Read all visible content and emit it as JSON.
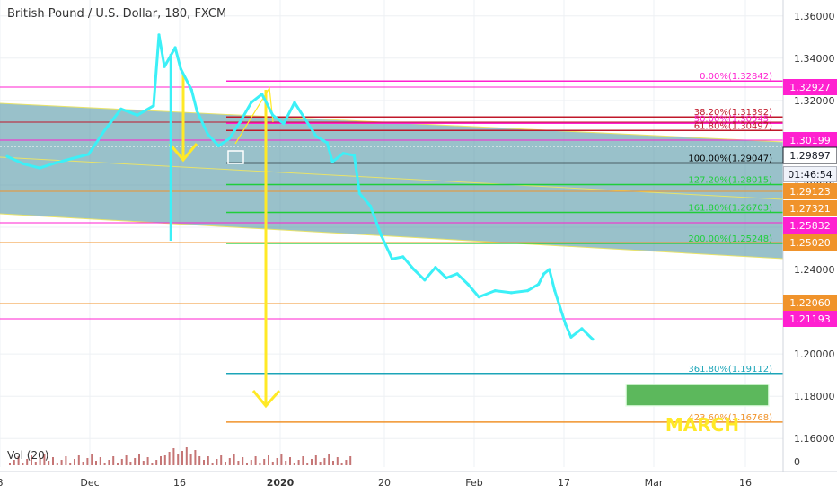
{
  "chart_title": "British Pound / U.S. Dollar, 180, FXCM",
  "countdown": "01:46:54",
  "volume_label": "Vol (20)",
  "annotation": "MARCH",
  "colors": {
    "price": "#3cf0f7",
    "fib_pink": "#ff20d0",
    "fib_red": "#c0182a",
    "fib_green": "#1fce3a",
    "fib_teal": "#1ca5b8",
    "fib_orange": "#f0932b",
    "arrow": "#ffe926",
    "channel_fill": "#5a9ba9",
    "march_box": "#5cb85c",
    "volume": "#ad3b3b"
  },
  "chart_data": {
    "type": "line",
    "title": "British Pound / U.S. Dollar, 180, FXCM",
    "ylim": [
      1.155,
      1.365
    ],
    "y_ticks": [
      "1.36000",
      "1.34000",
      "1.32000",
      "1.28000",
      "1.26000",
      "1.24000",
      "1.20000",
      "1.18000",
      "1.16000"
    ],
    "x_ticks": [
      "8",
      "Dec",
      "16",
      "2020",
      "20",
      "Feb",
      "17",
      "Mar",
      "16"
    ],
    "price_series": [
      {
        "x": 0,
        "y": 1.2935
      },
      {
        "x": 3,
        "y": 1.29
      },
      {
        "x": 6,
        "y": 1.288
      },
      {
        "x": 9,
        "y": 1.2905
      },
      {
        "x": 12,
        "y": 1.2925
      },
      {
        "x": 15,
        "y": 1.2945
      },
      {
        "x": 18,
        "y": 1.306
      },
      {
        "x": 21,
        "y": 1.316
      },
      {
        "x": 24,
        "y": 1.313
      },
      {
        "x": 27,
        "y": 1.3175
      },
      {
        "x": 28,
        "y": 1.351
      },
      {
        "x": 29,
        "y": 1.336
      },
      {
        "x": 31,
        "y": 1.345
      },
      {
        "x": 32,
        "y": 1.335
      },
      {
        "x": 34,
        "y": 1.325
      },
      {
        "x": 35,
        "y": 1.315
      },
      {
        "x": 37,
        "y": 1.304
      },
      {
        "x": 39,
        "y": 1.2985
      },
      {
        "x": 41,
        "y": 1.302
      },
      {
        "x": 43,
        "y": 1.31
      },
      {
        "x": 45,
        "y": 1.319
      },
      {
        "x": 47,
        "y": 1.323
      },
      {
        "x": 49,
        "y": 1.313
      },
      {
        "x": 51,
        "y": 1.309
      },
      {
        "x": 53,
        "y": 1.319
      },
      {
        "x": 55,
        "y": 1.311
      },
      {
        "x": 57,
        "y": 1.303
      },
      {
        "x": 59,
        "y": 1.3
      },
      {
        "x": 60,
        "y": 1.291
      },
      {
        "x": 62,
        "y": 1.295
      },
      {
        "x": 64,
        "y": 1.294
      },
      {
        "x": 65,
        "y": 1.276
      },
      {
        "x": 67,
        "y": 1.27
      },
      {
        "x": 69,
        "y": 1.256
      },
      {
        "x": 71,
        "y": 1.245
      },
      {
        "x": 73,
        "y": 1.246
      },
      {
        "x": 75,
        "y": 1.24
      },
      {
        "x": 77,
        "y": 1.235
      },
      {
        "x": 79,
        "y": 1.241
      },
      {
        "x": 81,
        "y": 1.236
      },
      {
        "x": 83,
        "y": 1.238
      },
      {
        "x": 85,
        "y": 1.233
      },
      {
        "x": 87,
        "y": 1.227
      },
      {
        "x": 90,
        "y": 1.23
      },
      {
        "x": 93,
        "y": 1.229
      },
      {
        "x": 96,
        "y": 1.23
      },
      {
        "x": 98,
        "y": 1.233
      },
      {
        "x": 99,
        "y": 1.238
      },
      {
        "x": 100,
        "y": 1.24
      },
      {
        "x": 101,
        "y": 1.23
      },
      {
        "x": 103,
        "y": 1.214
      },
      {
        "x": 104,
        "y": 1.208
      },
      {
        "x": 106,
        "y": 1.212
      },
      {
        "x": 108,
        "y": 1.207
      }
    ],
    "horizontal_levels": [
      {
        "name": "0.00%(1.32842)",
        "price": 1.3292,
        "color": "#ff20d0"
      },
      {
        "name": "38.20%(1.31392)",
        "price": 1.3122,
        "color": "#c0182a"
      },
      {
        "name": "50.00%(1.30945)",
        "price": 1.3092,
        "color": "#ff20d0"
      },
      {
        "name": "61.80%(1.30497)",
        "price": 1.3058,
        "color": "#c0182a"
      },
      {
        "name": "100.00%(1.29047)",
        "price": 1.2904,
        "color": "#000000"
      },
      {
        "name": "127.20%(1.28015)",
        "price": 1.2802,
        "color": "#1fce3a"
      },
      {
        "name": "161.80%(1.26703)",
        "price": 1.267,
        "color": "#1fce3a"
      },
      {
        "name": "200.00%(1.25248)",
        "price": 1.2524,
        "color": "#1fce3a"
      },
      {
        "name": "361.80%(1.19112)",
        "price": 1.1908,
        "color": "#1ca5b8"
      },
      {
        "name": "423.60%(1.16768)",
        "price": 1.1678,
        "color": "#f0932b"
      }
    ],
    "price_labels": [
      {
        "label": "1.32927",
        "color": "#ff20d0"
      },
      {
        "label": "1.30199",
        "color": "#ff20d0"
      },
      {
        "label": "1.29897",
        "color": "#ffffff"
      },
      {
        "label": "1.29123",
        "color": "#f0932b"
      },
      {
        "label": "1.27321",
        "color": "#f0932b"
      },
      {
        "label": "1.25832",
        "color": "#ff20d0"
      },
      {
        "label": "1.25020",
        "color": "#f0932b"
      },
      {
        "label": "1.22060",
        "color": "#f0932b"
      },
      {
        "label": "1.21193",
        "color": "#ff20d0"
      }
    ]
  }
}
